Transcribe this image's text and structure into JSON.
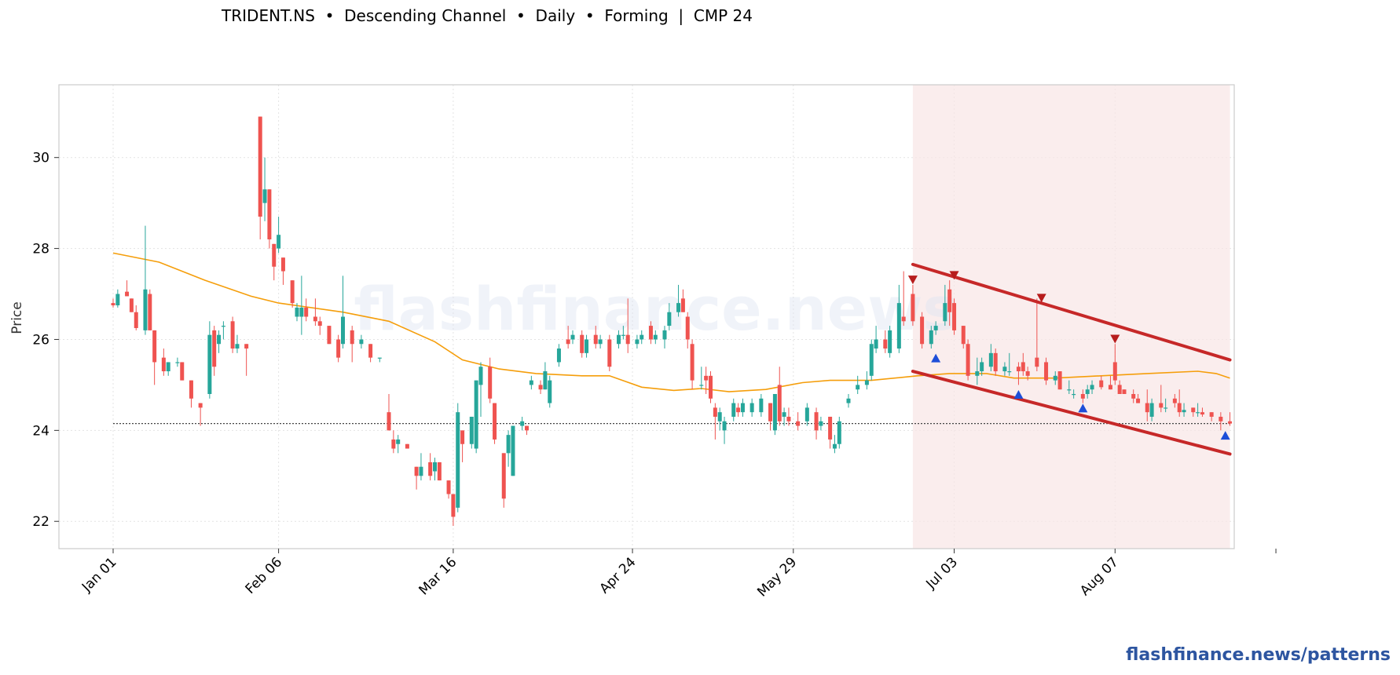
{
  "title": "TRIDENT.NS  •  Descending Channel  •  Daily  •  Forming  |  CMP 24",
  "footer": {
    "link": "flashfinance.news/patterns"
  },
  "watermark": "flashfinance.news",
  "colors": {
    "up": "#26a69a",
    "down": "#ef5350",
    "ma": "#f59e0b",
    "channel": "#c62828",
    "zone": "#f8e6e6",
    "peak_marker": "#b71c1c",
    "trough_marker": "#1d4ed8",
    "link": "#2d55a0"
  },
  "chart_data": {
    "type": "candlestick",
    "ylabel": "Price",
    "ylim": [
      21.4,
      31.6
    ],
    "yticks": [
      22,
      24,
      26,
      28,
      30
    ],
    "x_start": "Jan 01",
    "x_end": "Sep 23",
    "xticks": [
      {
        "label": "Jan 01",
        "day": 0
      },
      {
        "label": "Feb 06",
        "day": 36
      },
      {
        "label": "Mar 16",
        "day": 74
      },
      {
        "label": "Apr 24",
        "day": 113
      },
      {
        "label": "May 29",
        "day": 148
      },
      {
        "label": "Jul 03",
        "day": 183
      },
      {
        "label": "Aug 07",
        "day": 218
      }
    ],
    "grid": true,
    "cmp": 24.15,
    "pattern_zone": {
      "start": "Jun 24",
      "end": "Sep 01"
    },
    "channel": {
      "upper": [
        [
          "Jun 24",
          27.65
        ],
        [
          "Sep 01",
          25.55
        ]
      ],
      "lower": [
        [
          "Jun 24",
          25.3
        ],
        [
          "Sep 01",
          23.48
        ]
      ]
    },
    "peak_markers": [
      [
        "Jun 24",
        27.3
      ],
      [
        "Jul 03",
        27.4
      ],
      [
        "Jul 22",
        26.9
      ],
      [
        "Aug 07",
        26.0
      ]
    ],
    "trough_markers": [
      [
        "Jun 29",
        25.6
      ],
      [
        "Jul 17",
        24.8
      ],
      [
        "Jul 31",
        24.5
      ],
      [
        "Aug 31",
        23.9
      ]
    ],
    "moving_average": [
      [
        0,
        27.9
      ],
      [
        10,
        27.7
      ],
      [
        20,
        27.3
      ],
      [
        30,
        26.95
      ],
      [
        36,
        26.8
      ],
      [
        50,
        26.6
      ],
      [
        60,
        26.4
      ],
      [
        70,
        25.95
      ],
      [
        76,
        25.55
      ],
      [
        84,
        25.35
      ],
      [
        92,
        25.25
      ],
      [
        102,
        25.2
      ],
      [
        108,
        25.2
      ],
      [
        115,
        24.95
      ],
      [
        122,
        24.88
      ],
      [
        128,
        24.92
      ],
      [
        134,
        24.85
      ],
      [
        142,
        24.9
      ],
      [
        150,
        25.05
      ],
      [
        156,
        25.1
      ],
      [
        165,
        25.1
      ],
      [
        175,
        25.2
      ],
      [
        182,
        25.25
      ],
      [
        190,
        25.25
      ],
      [
        196,
        25.15
      ],
      [
        205,
        25.15
      ],
      [
        215,
        25.2
      ],
      [
        225,
        25.25
      ],
      [
        236,
        25.3
      ],
      [
        240,
        25.25
      ],
      [
        243,
        25.15
      ]
    ],
    "candles": [
      [
        "Jan 01",
        26.8,
        26.9,
        26.7,
        26.75
      ],
      [
        "Jan 02",
        26.75,
        27.1,
        26.7,
        27.0
      ],
      [
        "Jan 04",
        27.05,
        27.3,
        26.95,
        26.95
      ],
      [
        "Jan 05",
        26.9,
        26.9,
        26.6,
        26.6
      ],
      [
        "Jan 06",
        26.6,
        26.75,
        26.2,
        26.25
      ],
      [
        "Jan 08",
        26.2,
        28.5,
        26.1,
        27.1
      ],
      [
        "Jan 09",
        27.0,
        27.1,
        26.2,
        26.2
      ],
      [
        "Jan 10",
        26.2,
        26.2,
        25.0,
        25.5
      ],
      [
        "Jan 12",
        25.6,
        25.8,
        25.2,
        25.3
      ],
      [
        "Jan 13",
        25.3,
        25.5,
        25.2,
        25.5
      ],
      [
        "Jan 15",
        25.5,
        25.6,
        25.4,
        25.5
      ],
      [
        "Jan 16",
        25.5,
        25.5,
        25.1,
        25.1
      ],
      [
        "Jan 18",
        25.1,
        25.1,
        24.5,
        24.7
      ],
      [
        "Jan 20",
        24.6,
        24.6,
        24.1,
        24.5
      ],
      [
        "Jan 22",
        24.8,
        26.4,
        24.7,
        26.1
      ],
      [
        "Jan 23",
        26.2,
        26.3,
        25.2,
        25.4
      ],
      [
        "Jan 24",
        25.9,
        26.2,
        25.7,
        26.1
      ],
      [
        "Jan 25",
        26.3,
        26.4,
        26.0,
        26.3
      ],
      [
        "Jan 27",
        26.4,
        26.5,
        25.7,
        25.8
      ],
      [
        "Jan 28",
        25.8,
        26.1,
        25.7,
        25.9
      ],
      [
        "Jan 30",
        25.9,
        25.9,
        25.2,
        25.8
      ],
      [
        "Feb 02",
        30.9,
        30.9,
        28.2,
        28.7
      ],
      [
        "Feb 03",
        29.0,
        30.0,
        28.6,
        29.3
      ],
      [
        "Feb 04",
        29.3,
        29.3,
        28.0,
        28.2
      ],
      [
        "Feb 05",
        28.1,
        28.1,
        27.3,
        27.6
      ],
      [
        "Feb 06",
        28.0,
        28.7,
        27.9,
        28.3
      ],
      [
        "Feb 07",
        27.8,
        27.8,
        27.2,
        27.5
      ],
      [
        "Feb 09",
        27.3,
        27.3,
        26.7,
        26.8
      ],
      [
        "Feb 10",
        26.5,
        26.8,
        26.4,
        26.7
      ],
      [
        "Feb 11",
        26.5,
        27.4,
        26.1,
        26.7
      ],
      [
        "Feb 12",
        26.7,
        26.9,
        26.4,
        26.5
      ],
      [
        "Feb 14",
        26.5,
        26.9,
        26.3,
        26.4
      ],
      [
        "Feb 15",
        26.4,
        26.5,
        26.1,
        26.3
      ],
      [
        "Feb 17",
        26.3,
        26.3,
        25.9,
        25.9
      ],
      [
        "Feb 19",
        26.0,
        26.1,
        25.5,
        25.6
      ],
      [
        "Feb 20",
        25.9,
        27.4,
        25.8,
        26.5
      ],
      [
        "Feb 22",
        26.2,
        26.3,
        25.5,
        25.9
      ],
      [
        "Feb 24",
        25.9,
        26.1,
        25.8,
        26.0
      ],
      [
        "Feb 26",
        25.9,
        25.9,
        25.5,
        25.6
      ],
      [
        "Feb 28",
        25.6,
        25.6,
        25.5,
        25.6
      ],
      [
        "Mar 02",
        24.4,
        24.8,
        24.0,
        24.0
      ],
      [
        "Mar 03",
        23.8,
        24.0,
        23.5,
        23.6
      ],
      [
        "Mar 04",
        23.7,
        23.9,
        23.5,
        23.8
      ],
      [
        "Mar 06",
        23.7,
        23.7,
        23.6,
        23.6
      ],
      [
        "Mar 08",
        23.2,
        23.2,
        22.7,
        23.0
      ],
      [
        "Mar 09",
        23.0,
        23.5,
        22.9,
        23.2
      ],
      [
        "Mar 11",
        23.3,
        23.5,
        22.9,
        23.0
      ],
      [
        "Mar 12",
        23.1,
        23.4,
        22.9,
        23.3
      ],
      [
        "Mar 13",
        23.3,
        23.3,
        22.9,
        22.9
      ],
      [
        "Mar 15",
        22.9,
        22.9,
        22.5,
        22.6
      ],
      [
        "Mar 16",
        22.6,
        22.6,
        21.9,
        22.1
      ],
      [
        "Mar 17",
        22.3,
        24.6,
        22.2,
        24.4
      ],
      [
        "Mar 18",
        24.0,
        24.0,
        23.3,
        23.7
      ],
      [
        "Mar 20",
        23.7,
        24.3,
        23.6,
        24.3
      ],
      [
        "Mar 21",
        23.6,
        25.0,
        23.5,
        25.1
      ],
      [
        "Mar 22",
        25.0,
        25.5,
        24.3,
        25.4
      ],
      [
        "Mar 24",
        25.4,
        25.6,
        24.6,
        24.7
      ],
      [
        "Mar 25",
        24.6,
        24.6,
        23.7,
        23.8
      ],
      [
        "Mar 27",
        23.5,
        23.5,
        22.3,
        22.5
      ],
      [
        "Mar 28",
        23.5,
        24.0,
        23.2,
        23.9
      ],
      [
        "Mar 29",
        23.0,
        24.1,
        23.0,
        24.1
      ],
      [
        "Mar 31",
        24.1,
        24.3,
        24.0,
        24.2
      ],
      [
        "Apr 01",
        24.1,
        24.1,
        23.9,
        24.0
      ],
      [
        "Apr 02",
        25.0,
        25.2,
        24.9,
        25.1
      ],
      [
        "Apr 04",
        25.0,
        25.1,
        24.8,
        24.9
      ],
      [
        "Apr 05",
        24.9,
        25.5,
        24.9,
        25.3
      ],
      [
        "Apr 06",
        24.6,
        25.2,
        24.5,
        25.1
      ],
      [
        "Apr 08",
        25.5,
        25.9,
        25.4,
        25.8
      ],
      [
        "Apr 10",
        26.0,
        26.3,
        25.8,
        25.9
      ],
      [
        "Apr 11",
        26.0,
        26.2,
        25.9,
        26.1
      ],
      [
        "Apr 13",
        26.1,
        26.2,
        25.6,
        25.7
      ],
      [
        "Apr 14",
        25.7,
        26.1,
        25.6,
        26.0
      ],
      [
        "Apr 16",
        26.1,
        26.3,
        25.8,
        25.9
      ],
      [
        "Apr 17",
        25.9,
        26.1,
        25.8,
        26.0
      ],
      [
        "Apr 19",
        26.0,
        26.1,
        25.3,
        25.4
      ],
      [
        "Apr 21",
        25.9,
        26.2,
        25.8,
        26.1
      ],
      [
        "Apr 22",
        26.1,
        26.3,
        26.0,
        26.1
      ],
      [
        "Apr 23",
        26.1,
        26.9,
        25.7,
        25.9
      ],
      [
        "Apr 25",
        25.9,
        26.1,
        25.8,
        26.0
      ],
      [
        "Apr 26",
        26.0,
        26.2,
        25.9,
        26.1
      ],
      [
        "Apr 28",
        26.3,
        26.4,
        25.9,
        26.0
      ],
      [
        "Apr 29",
        26.0,
        26.2,
        25.9,
        26.1
      ],
      [
        "May 01",
        26.0,
        26.3,
        25.8,
        26.2
      ],
      [
        "May 02",
        26.3,
        26.8,
        26.2,
        26.6
      ],
      [
        "May 04",
        26.6,
        27.2,
        26.5,
        26.8
      ],
      [
        "May 05",
        26.9,
        27.1,
        26.6,
        26.6
      ],
      [
        "May 06",
        26.5,
        26.6,
        25.8,
        26.0
      ],
      [
        "May 07",
        25.9,
        26.0,
        24.9,
        25.1
      ],
      [
        "May 09",
        25.0,
        25.4,
        24.9,
        25.0
      ],
      [
        "May 10",
        25.2,
        25.4,
        24.8,
        25.1
      ],
      [
        "May 11",
        25.2,
        25.3,
        24.6,
        24.7
      ],
      [
        "May 12",
        24.5,
        24.6,
        23.8,
        24.3
      ],
      [
        "May 13",
        24.2,
        24.5,
        24.0,
        24.4
      ],
      [
        "May 14",
        24.0,
        24.3,
        23.7,
        24.2
      ],
      [
        "May 16",
        24.3,
        24.7,
        24.2,
        24.6
      ],
      [
        "May 17",
        24.5,
        24.6,
        24.3,
        24.4
      ],
      [
        "May 18",
        24.4,
        24.7,
        24.3,
        24.6
      ],
      [
        "May 20",
        24.4,
        24.7,
        24.3,
        24.6
      ],
      [
        "May 22",
        24.4,
        24.8,
        24.3,
        24.7
      ],
      [
        "May 24",
        24.6,
        24.6,
        24.0,
        24.2
      ],
      [
        "May 25",
        24.0,
        24.7,
        23.9,
        24.8
      ],
      [
        "May 26",
        25.0,
        25.4,
        24.1,
        24.2
      ],
      [
        "May 27",
        24.3,
        24.5,
        24.1,
        24.4
      ],
      [
        "May 28",
        24.3,
        24.5,
        24.1,
        24.2
      ],
      [
        "May 30",
        24.2,
        24.4,
        24.0,
        24.1
      ],
      [
        "Jun 01",
        24.2,
        24.6,
        24.1,
        24.5
      ],
      [
        "Jun 03",
        24.4,
        24.5,
        23.8,
        24.0
      ],
      [
        "Jun 04",
        24.1,
        24.3,
        24.0,
        24.2
      ],
      [
        "Jun 06",
        24.3,
        24.3,
        23.6,
        23.8
      ],
      [
        "Jun 07",
        23.6,
        23.9,
        23.5,
        23.7
      ],
      [
        "Jun 08",
        23.7,
        24.3,
        23.6,
        24.2
      ],
      [
        "Jun 10",
        24.6,
        24.8,
        24.5,
        24.7
      ],
      [
        "Jun 12",
        24.9,
        25.2,
        24.8,
        25.0
      ],
      [
        "Jun 14",
        25.0,
        25.3,
        24.9,
        25.1
      ],
      [
        "Jun 15",
        25.2,
        26.0,
        25.1,
        25.9
      ],
      [
        "Jun 16",
        25.8,
        26.3,
        25.7,
        26.0
      ],
      [
        "Jun 18",
        26.0,
        26.2,
        25.7,
        25.8
      ],
      [
        "Jun 19",
        25.7,
        26.3,
        25.6,
        26.2
      ],
      [
        "Jun 21",
        25.8,
        27.2,
        25.7,
        26.8
      ],
      [
        "Jun 22",
        26.5,
        27.5,
        26.3,
        26.4
      ],
      [
        "Jun 24",
        27.0,
        27.2,
        26.3,
        26.4
      ],
      [
        "Jun 26",
        26.5,
        26.6,
        25.8,
        25.9
      ],
      [
        "Jun 28",
        25.9,
        26.3,
        25.8,
        26.2
      ],
      [
        "Jun 29",
        26.2,
        26.4,
        26.1,
        26.3
      ],
      [
        "Jul 01",
        26.4,
        27.2,
        26.3,
        26.8
      ],
      [
        "Jul 02",
        27.1,
        27.3,
        26.3,
        26.6
      ],
      [
        "Jul 03",
        26.8,
        26.9,
        26.1,
        26.2
      ],
      [
        "Jul 05",
        26.3,
        26.3,
        25.8,
        25.9
      ],
      [
        "Jul 06",
        25.9,
        26.0,
        25.1,
        25.2
      ],
      [
        "Jul 08",
        25.2,
        25.6,
        25.0,
        25.3
      ],
      [
        "Jul 09",
        25.3,
        25.6,
        25.2,
        25.5
      ],
      [
        "Jul 11",
        25.4,
        25.9,
        25.3,
        25.7
      ],
      [
        "Jul 12",
        25.7,
        25.8,
        25.2,
        25.3
      ],
      [
        "Jul 14",
        25.3,
        25.5,
        25.2,
        25.4
      ],
      [
        "Jul 15",
        25.3,
        25.7,
        25.2,
        25.3
      ],
      [
        "Jul 17",
        25.4,
        25.5,
        25.0,
        25.3
      ],
      [
        "Jul 18",
        25.5,
        25.7,
        25.2,
        25.3
      ],
      [
        "Jul 19",
        25.3,
        25.4,
        25.1,
        25.2
      ],
      [
        "Jul 21",
        25.6,
        26.9,
        25.3,
        25.4
      ],
      [
        "Jul 23",
        25.5,
        25.6,
        25.0,
        25.1
      ],
      [
        "Jul 25",
        25.1,
        25.3,
        25.0,
        25.2
      ],
      [
        "Jul 26",
        25.3,
        25.3,
        24.9,
        24.9
      ],
      [
        "Jul 28",
        24.9,
        25.1,
        24.8,
        24.9
      ],
      [
        "Jul 29",
        24.8,
        24.9,
        24.7,
        24.8
      ],
      [
        "Jul 31",
        24.8,
        24.9,
        24.6,
        24.7
      ],
      [
        "Aug 01",
        24.8,
        25.0,
        24.7,
        24.9
      ],
      [
        "Aug 02",
        24.9,
        25.1,
        24.8,
        25.0
      ],
      [
        "Aug 04",
        25.1,
        25.2,
        24.9,
        24.95
      ],
      [
        "Aug 06",
        25.0,
        25.2,
        24.9,
        24.9
      ],
      [
        "Aug 07",
        25.5,
        25.9,
        25.0,
        25.1
      ],
      [
        "Aug 08",
        25.0,
        25.1,
        24.8,
        24.8
      ],
      [
        "Aug 09",
        24.9,
        24.9,
        24.8,
        24.8
      ],
      [
        "Aug 11",
        24.8,
        24.9,
        24.6,
        24.7
      ],
      [
        "Aug 12",
        24.7,
        24.8,
        24.6,
        24.6
      ],
      [
        "Aug 14",
        24.6,
        24.9,
        24.2,
        24.4
      ],
      [
        "Aug 15",
        24.3,
        24.7,
        24.2,
        24.6
      ],
      [
        "Aug 17",
        24.6,
        25.0,
        24.4,
        24.5
      ],
      [
        "Aug 18",
        24.5,
        24.7,
        24.4,
        24.5
      ],
      [
        "Aug 20",
        24.7,
        24.8,
        24.5,
        24.6
      ],
      [
        "Aug 21",
        24.6,
        24.9,
        24.3,
        24.4
      ],
      [
        "Aug 22",
        24.4,
        24.6,
        24.3,
        24.45
      ],
      [
        "Aug 24",
        24.5,
        24.5,
        24.3,
        24.4
      ],
      [
        "Aug 25",
        24.4,
        24.6,
        24.3,
        24.4
      ],
      [
        "Aug 26",
        24.4,
        24.5,
        24.3,
        24.35
      ],
      [
        "Aug 28",
        24.4,
        24.4,
        24.2,
        24.3
      ],
      [
        "Aug 30",
        24.3,
        24.4,
        24.0,
        24.2
      ],
      [
        "Sep 01",
        24.2,
        24.4,
        24.1,
        24.15
      ]
    ]
  }
}
